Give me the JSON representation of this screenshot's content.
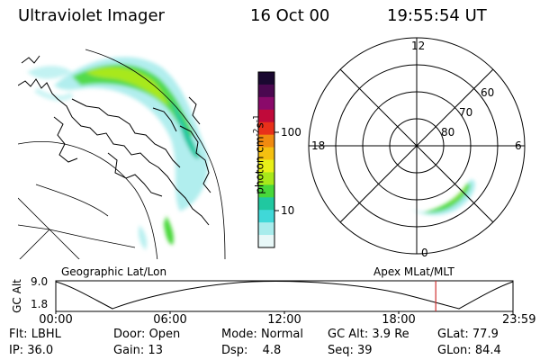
{
  "header": {
    "title": "Ultraviolet Imager",
    "date": "16 Oct 00",
    "time": "19:55:54 UT"
  },
  "colorbar": {
    "label": "photon cm",
    "label_exp1": "-2",
    "label_mid": "s",
    "label_exp2": "-1",
    "tick_100": "100",
    "tick_10": "10",
    "colors": [
      "#1a0830",
      "#4b0850",
      "#8a0a6a",
      "#c00a3a",
      "#e8301a",
      "#f08a10",
      "#f5c010",
      "#e8f018",
      "#a8e81a",
      "#48d83a",
      "#20c8a0",
      "#40d8d8",
      "#a8ecec",
      "#e8f8f8"
    ]
  },
  "polar": {
    "mlt_top": "12",
    "mlt_left": "18",
    "mlt_right": "6",
    "mlt_bottom": "0",
    "lat_60": "60",
    "lat_70": "70",
    "lat_80": "80"
  },
  "labels": {
    "left_panel": "Geographic Lat/Lon",
    "right_panel": "Apex MLat/MLT"
  },
  "timeline": {
    "y_label": "GC Alt",
    "y_max": "9.0",
    "y_min": "1.8",
    "ticks": [
      "00:00",
      "06:00",
      "12:00",
      "18:00",
      "23:59"
    ],
    "marker_time": "19:55:54",
    "marker_color": "#d03030"
  },
  "info": {
    "flt_label": "Flt:",
    "flt_value": "LBHL",
    "ip_label": "IP:",
    "ip_value": "36.0",
    "door_label": "Door:",
    "door_value": "Open",
    "gain_label": "Gain:",
    "gain_value": "13",
    "mode_label": "Mode:",
    "mode_value": "Normal",
    "dsp_label": "Dsp:",
    "dsp_value": "4.8",
    "gcalt_label": "GC Alt:",
    "gcalt_value": "3.9 Re",
    "seq_label": "Seq:",
    "seq_value": "39",
    "glat_label": "GLat:",
    "glat_value": "77.9",
    "glon_label": "GLon:",
    "glon_value": "84.4"
  }
}
